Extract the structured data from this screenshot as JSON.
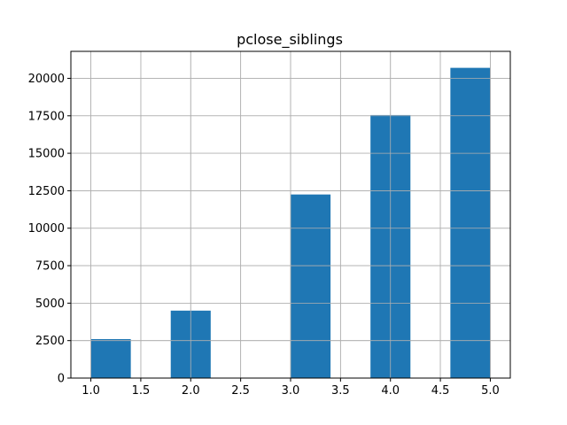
{
  "chart_data": {
    "type": "bar",
    "title": "pclose_siblings",
    "xlabel": "",
    "ylabel": "",
    "xlim": [
      0.8,
      5.2
    ],
    "ylim": [
      0,
      21800
    ],
    "grid": true,
    "color": "#1f77b4",
    "bins": [
      {
        "x0": 1.0,
        "x1": 1.4,
        "value": 2600
      },
      {
        "x0": 1.4,
        "x1": 1.8,
        "value": 0
      },
      {
        "x0": 1.8,
        "x1": 2.2,
        "value": 4500
      },
      {
        "x0": 2.2,
        "x1": 2.6,
        "value": 0
      },
      {
        "x0": 2.6,
        "x1": 3.0,
        "value": 0
      },
      {
        "x0": 3.0,
        "x1": 3.4,
        "value": 12250
      },
      {
        "x0": 3.4,
        "x1": 3.8,
        "value": 0
      },
      {
        "x0": 3.8,
        "x1": 4.2,
        "value": 17550
      },
      {
        "x0": 4.2,
        "x1": 4.6,
        "value": 0
      },
      {
        "x0": 4.6,
        "x1": 5.0,
        "value": 20700
      }
    ],
    "x_ticks": [
      {
        "value": 1.0,
        "label": "1.0"
      },
      {
        "value": 1.5,
        "label": "1.5"
      },
      {
        "value": 2.0,
        "label": "2.0"
      },
      {
        "value": 2.5,
        "label": "2.5"
      },
      {
        "value": 3.0,
        "label": "3.0"
      },
      {
        "value": 3.5,
        "label": "3.5"
      },
      {
        "value": 4.0,
        "label": "4.0"
      },
      {
        "value": 4.5,
        "label": "4.5"
      },
      {
        "value": 5.0,
        "label": "5.0"
      }
    ],
    "y_ticks": [
      {
        "value": 0,
        "label": "0"
      },
      {
        "value": 2500,
        "label": "2500"
      },
      {
        "value": 5000,
        "label": "5000"
      },
      {
        "value": 7500,
        "label": "7500"
      },
      {
        "value": 10000,
        "label": "10000"
      },
      {
        "value": 12500,
        "label": "12500"
      },
      {
        "value": 15000,
        "label": "15000"
      },
      {
        "value": 17500,
        "label": "17500"
      },
      {
        "value": 20000,
        "label": "20000"
      }
    ]
  }
}
